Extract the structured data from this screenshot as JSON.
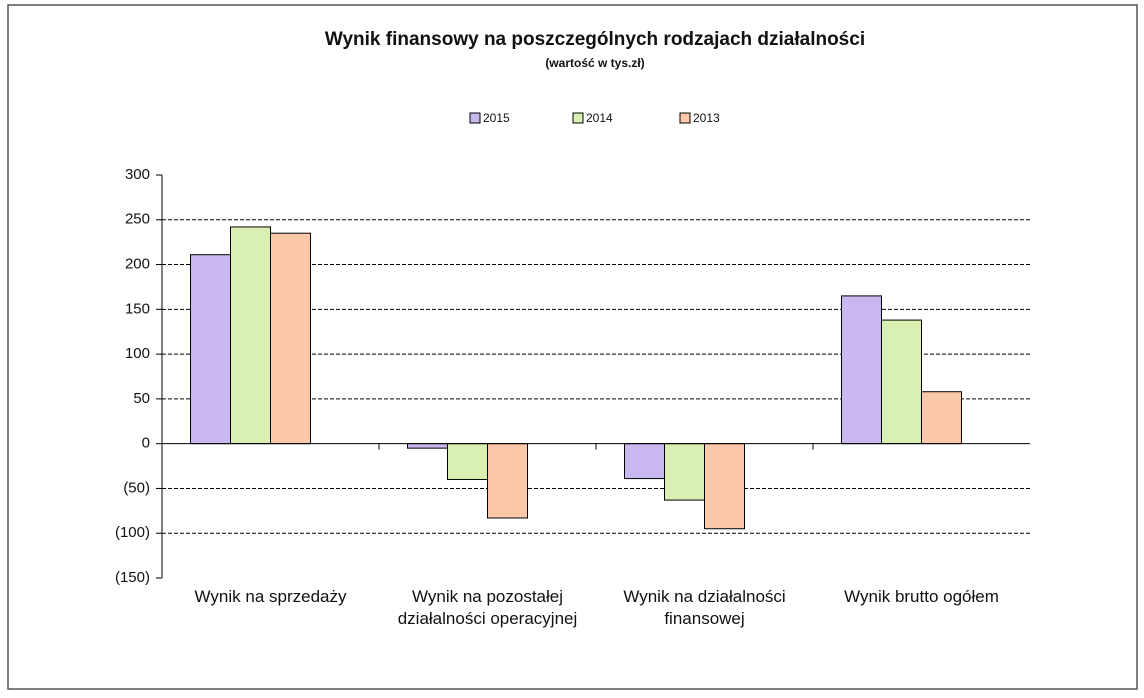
{
  "chart_data": {
    "type": "bar",
    "title": "Wynik finansowy na poszczególnych rodzajach działalności",
    "subtitle": "(wartość w tys.zł)",
    "categories": [
      "Wynik na sprzedaży",
      "Wynik na pozostałej działalności operacyjnej",
      "Wynik na działalności finansowej",
      "Wynik brutto ogółem"
    ],
    "series": [
      {
        "name": "2015",
        "color": "#c9b8f0",
        "values": [
          211,
          -5,
          -39,
          165
        ]
      },
      {
        "name": "2014",
        "color": "#daf0b2",
        "values": [
          242,
          -40,
          -63,
          138
        ]
      },
      {
        "name": "2013",
        "color": "#fbc9a9",
        "values": [
          235,
          -83,
          -95,
          58
        ]
      }
    ],
    "ylim": [
      -150,
      300
    ],
    "yticks": [
      {
        "value": -150,
        "label": "(150)"
      },
      {
        "value": -100,
        "label": "(100)"
      },
      {
        "value": -50,
        "label": "(50)"
      },
      0,
      50,
      100,
      150,
      200,
      250,
      300
    ],
    "grid": true,
    "legend": "top"
  }
}
